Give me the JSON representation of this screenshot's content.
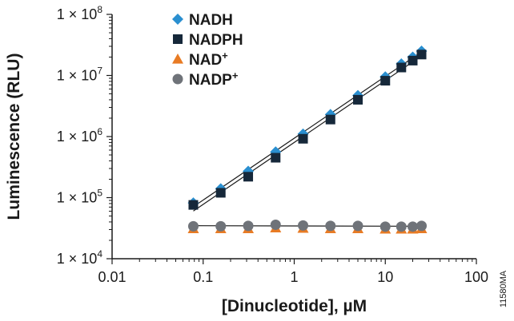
{
  "chart_data": {
    "type": "scatter",
    "xscale": "log",
    "yscale": "log",
    "xlim": [
      0.01,
      100
    ],
    "ylim": [
      10000,
      100000000
    ],
    "xlabel": "[Dinucleotide], µM",
    "ylabel": "Luminescence (RLU)",
    "x_ticks": [
      "0.01",
      "0.1",
      "1",
      "10",
      "100"
    ],
    "y_ticks": [
      {
        "base": "1 × 10",
        "exp": "4"
      },
      {
        "base": "1 × 10",
        "exp": "5"
      },
      {
        "base": "1 × 10",
        "exp": "6"
      },
      {
        "base": "1 × 10",
        "exp": "7"
      },
      {
        "base": "1 × 10",
        "exp": "8"
      }
    ],
    "grid": false,
    "legend_position": "top-left",
    "x": [
      0.078,
      0.156,
      0.3125,
      0.625,
      1.25,
      2.5,
      5,
      10,
      15,
      20,
      25
    ],
    "series": [
      {
        "name": "NADH",
        "sup": "",
        "marker": "diamond",
        "color": "#2a8fd0",
        "fit": true,
        "values": [
          82000,
          140000,
          270000,
          560000,
          1100000,
          2300000,
          4700000,
          9500000,
          15500000,
          20000000,
          25000000
        ]
      },
      {
        "name": "NADPH",
        "sup": "",
        "marker": "square",
        "color": "#16283a",
        "fit": true,
        "values": [
          76000,
          120000,
          220000,
          450000,
          920000,
          1900000,
          4000000,
          8200000,
          13500000,
          17500000,
          22000000
        ]
      },
      {
        "name": "NAD",
        "sup": "+",
        "marker": "triangle",
        "color": "#e87b24",
        "fit": false,
        "values": [
          31000,
          31000,
          31000,
          32000,
          31500,
          31000,
          31000,
          30500,
          30500,
          30500,
          31000
        ]
      },
      {
        "name": "NADP",
        "sup": "+",
        "marker": "circle",
        "color": "#6f7379",
        "fit": true,
        "values": [
          34000,
          34000,
          34500,
          36000,
          35000,
          34500,
          34500,
          33500,
          33500,
          33500,
          34500
        ]
      }
    ]
  },
  "figure_code": "11580MA"
}
